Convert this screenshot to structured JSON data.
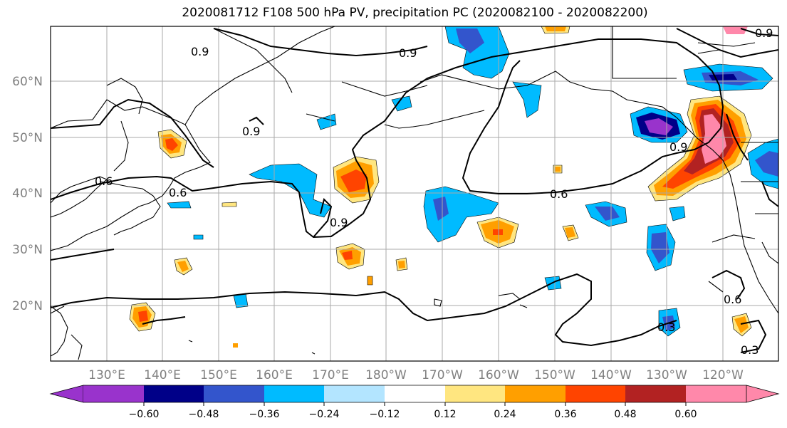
{
  "title": "2020081712 F108 500 hPa PV, precipitation PC (2020082100 - 2020082200)",
  "map": {
    "lat_labels": [
      "60°N",
      "50°N",
      "40°N",
      "30°N",
      "20°N"
    ],
    "lon_labels": [
      "130°E",
      "140°E",
      "150°E",
      "160°E",
      "170°E",
      "180°W",
      "170°W",
      "160°W",
      "150°W",
      "140°W",
      "130°W",
      "120°W"
    ],
    "contour_labels": [
      "0.9",
      "0.9",
      "0.9",
      "0.6",
      "0.9",
      "0.6",
      "0.6",
      "0.9",
      "0.9",
      "0.3",
      "0.3",
      "0.6"
    ]
  },
  "colorbar": {
    "ticks": [
      "−0.60",
      "−0.48",
      "−0.36",
      "−0.24",
      "−0.12",
      "0.12",
      "0.24",
      "0.36",
      "0.48",
      "0.60"
    ],
    "colors": [
      "#9933cc",
      "#000088",
      "#3355cc",
      "#00bbff",
      "#b3e5ff",
      "#ffffff",
      "#ffe680",
      "#ff9f00",
      "#ff4400",
      "#b22222",
      "#ff88aa"
    ]
  }
}
